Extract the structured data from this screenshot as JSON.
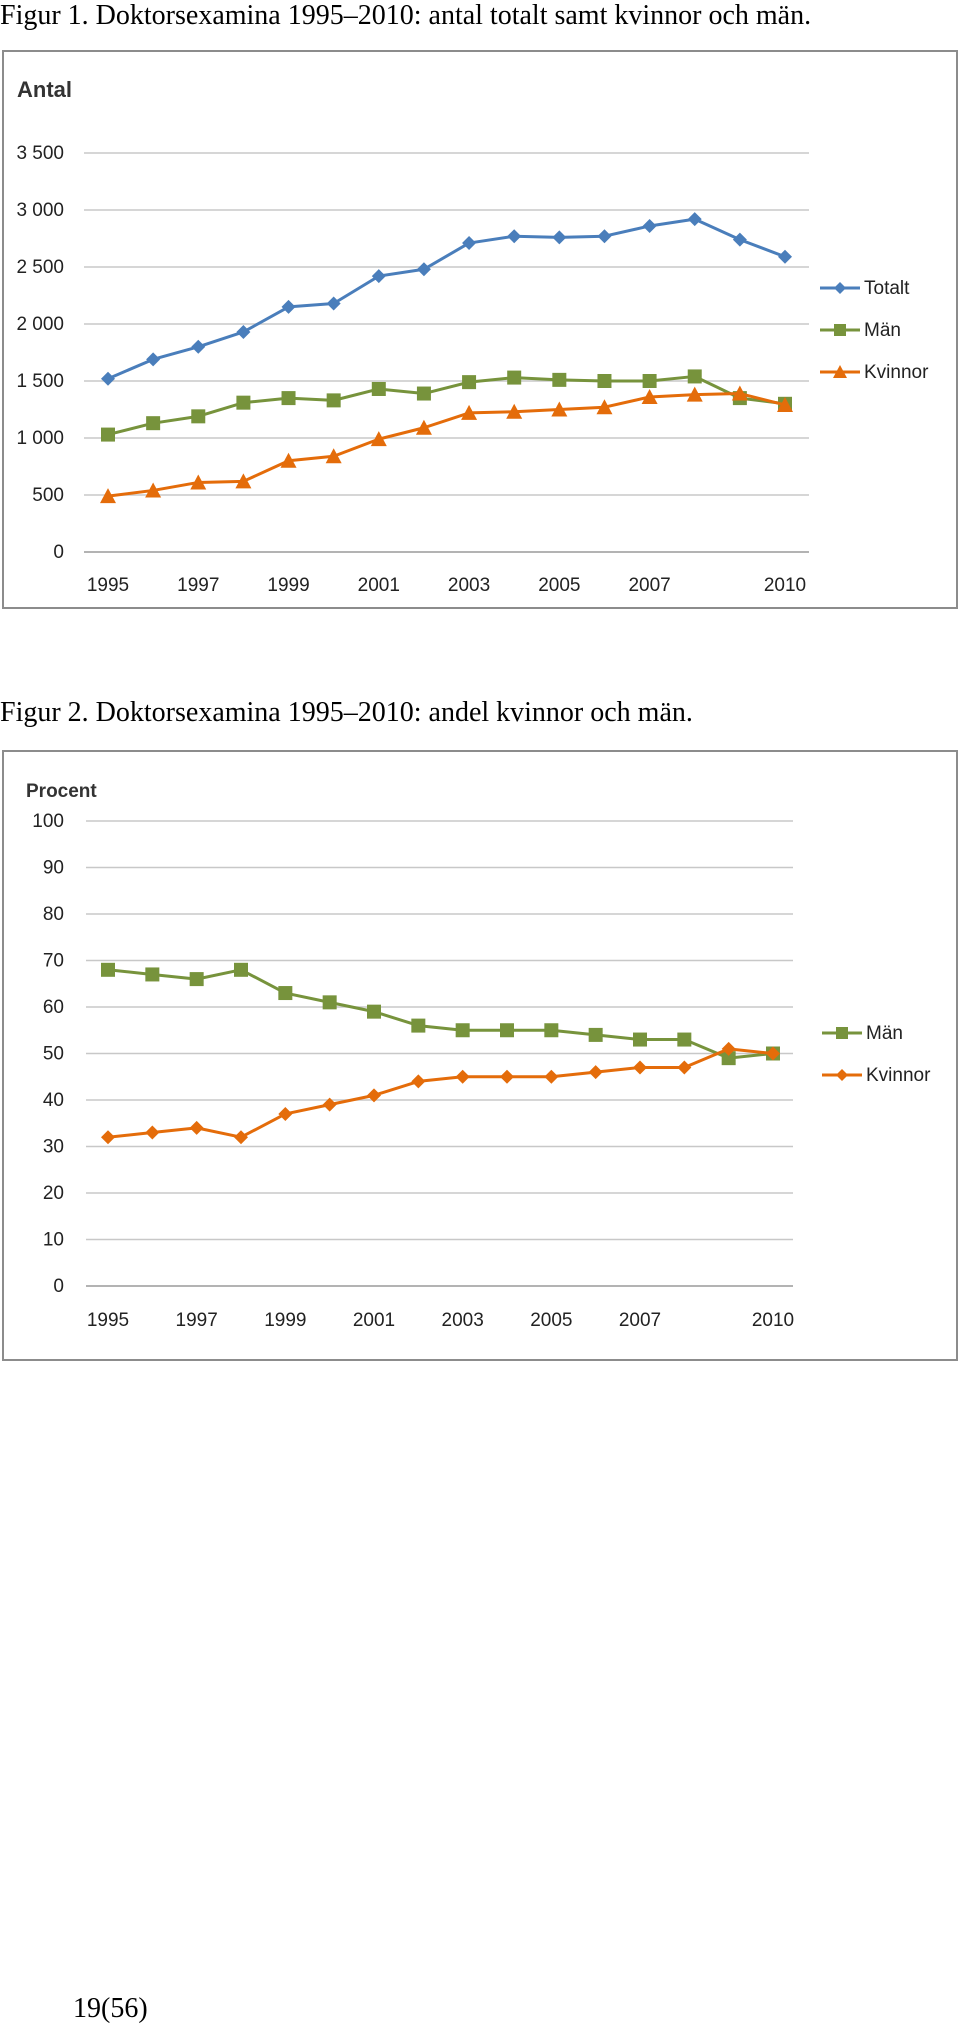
{
  "figure1": {
    "caption": "Figur 1. Doktorsexamina 1995–2010: antal totalt samt kvinnor och män."
  },
  "figure2": {
    "caption": "Figur 2. Doktorsexamina 1995–2010: andel kvinnor och män."
  },
  "page_number": "19(56)",
  "chart_data": [
    {
      "type": "line",
      "title": "Antal",
      "xlabel": "",
      "ylabel": "Antal",
      "x": [
        1995,
        1996,
        1997,
        1998,
        1999,
        2000,
        2001,
        2002,
        2003,
        2004,
        2005,
        2006,
        2007,
        2008,
        2009,
        2010
      ],
      "xticks": [
        1995,
        1997,
        1999,
        2001,
        2003,
        2005,
        2007,
        2010
      ],
      "yticks": [
        0,
        500,
        1000,
        1500,
        2000,
        2500,
        3000,
        3500
      ],
      "ytick_labels": [
        "0",
        "500",
        "1 000",
        "1 500",
        "2 000",
        "2 500",
        "3 000",
        "3 500"
      ],
      "ylim": [
        0,
        3500
      ],
      "grid": true,
      "legend_position": "right",
      "series": [
        {
          "name": "Totalt",
          "color": "#4a7ebb",
          "marker": "diamond",
          "values": [
            1520,
            1690,
            1800,
            1930,
            2150,
            2180,
            2420,
            2480,
            2710,
            2770,
            2760,
            2770,
            2860,
            2920,
            2740,
            2590
          ]
        },
        {
          "name": "Män",
          "color": "#77933c",
          "marker": "square",
          "values": [
            1030,
            1130,
            1190,
            1310,
            1350,
            1330,
            1430,
            1390,
            1490,
            1530,
            1510,
            1500,
            1500,
            1540,
            1350,
            1300
          ]
        },
        {
          "name": "Kvinnor",
          "color": "#e46c0a",
          "marker": "triangle",
          "values": [
            490,
            540,
            610,
            620,
            800,
            840,
            990,
            1090,
            1220,
            1230,
            1250,
            1270,
            1360,
            1380,
            1390,
            1290
          ]
        }
      ]
    },
    {
      "type": "line",
      "title": "Procent",
      "xlabel": "",
      "ylabel": "Procent",
      "x": [
        1995,
        1996,
        1997,
        1998,
        1999,
        2000,
        2001,
        2002,
        2003,
        2004,
        2005,
        2006,
        2007,
        2008,
        2009,
        2010
      ],
      "xticks": [
        1995,
        1997,
        1999,
        2001,
        2003,
        2005,
        2007,
        2010
      ],
      "yticks": [
        0,
        10,
        20,
        30,
        40,
        50,
        60,
        70,
        80,
        90,
        100
      ],
      "ytick_labels": [
        "0",
        "10",
        "20",
        "30",
        "40",
        "50",
        "60",
        "70",
        "80",
        "90",
        "100"
      ],
      "ylim": [
        0,
        100
      ],
      "grid": true,
      "legend_position": "right",
      "series": [
        {
          "name": "Män",
          "color": "#77933c",
          "marker": "square",
          "values": [
            68,
            67,
            66,
            68,
            63,
            61,
            59,
            56,
            55,
            55,
            55,
            54,
            53,
            53,
            49,
            50
          ]
        },
        {
          "name": "Kvinnor",
          "color": "#e46c0a",
          "marker": "diamond",
          "values": [
            32,
            33,
            34,
            32,
            37,
            39,
            41,
            44,
            45,
            45,
            45,
            46,
            47,
            47,
            51,
            50
          ]
        }
      ]
    }
  ]
}
